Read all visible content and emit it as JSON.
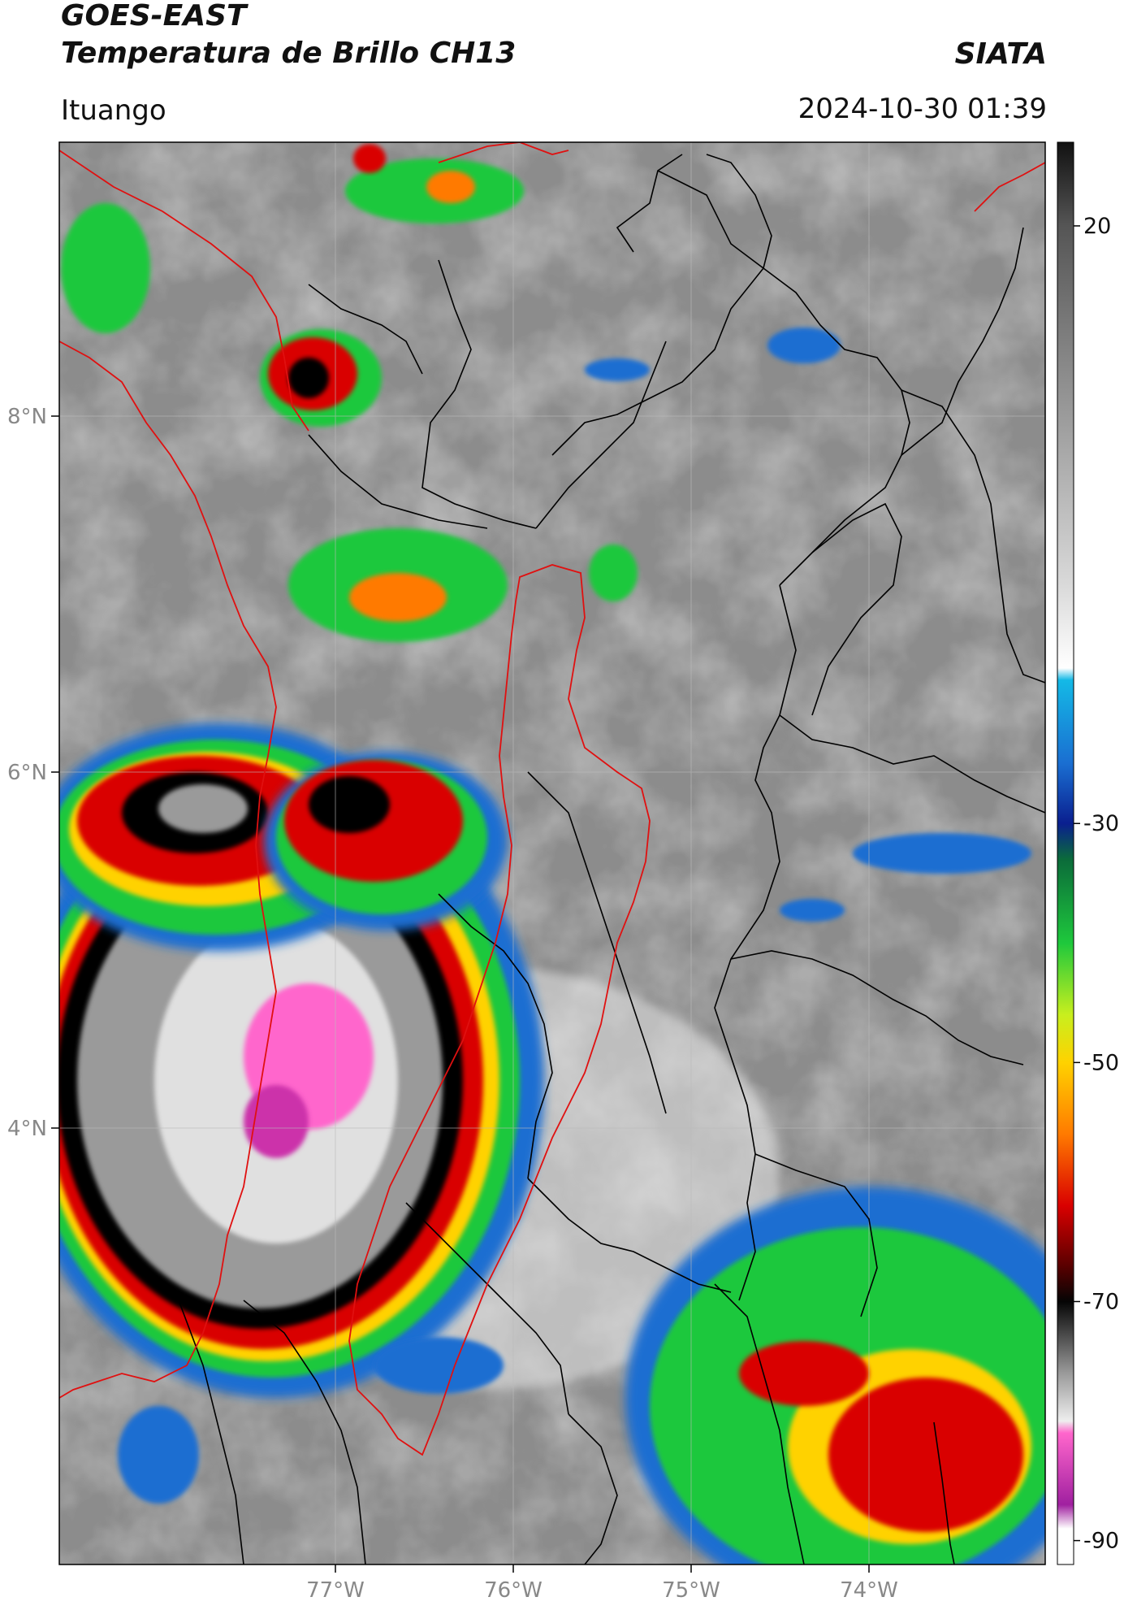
{
  "header": {
    "satellite": "GOES-EAST",
    "product": "Temperatura de Brillo CH13",
    "agency": "SIATA",
    "region": "Ituango",
    "datetime": "2024-10-30 01:39"
  },
  "axes": {
    "lat_ticks": [
      "8°N",
      "6°N",
      "4°N"
    ],
    "lon_ticks": [
      "77°W",
      "76°W",
      "75°W",
      "74°W"
    ]
  },
  "colorbar": {
    "ticks": [
      "20",
      "-30",
      "-50",
      "-70",
      "-90"
    ],
    "range": [
      -92,
      27
    ],
    "stops": [
      {
        "t": 27,
        "c": "#111111"
      },
      {
        "t": 20,
        "c": "#555555"
      },
      {
        "t": -10,
        "c": "#d9d9d9"
      },
      {
        "t": -17,
        "c": "#ffffff"
      },
      {
        "t": -18,
        "c": "#14b9e6"
      },
      {
        "t": -25,
        "c": "#1a6ed1"
      },
      {
        "t": -30,
        "c": "#0a1f8f"
      },
      {
        "t": -33,
        "c": "#0b6b3a"
      },
      {
        "t": -40,
        "c": "#1ec83c"
      },
      {
        "t": -46,
        "c": "#c8ef1e"
      },
      {
        "t": -50,
        "c": "#ffd200"
      },
      {
        "t": -56,
        "c": "#ff7a00"
      },
      {
        "t": -62,
        "c": "#d90000"
      },
      {
        "t": -67,
        "c": "#5a0000"
      },
      {
        "t": -70,
        "c": "#050505"
      },
      {
        "t": -76,
        "c": "#9a9a9a"
      },
      {
        "t": -80,
        "c": "#eeeeee"
      },
      {
        "t": -81,
        "c": "#ff66cc"
      },
      {
        "t": -87,
        "c": "#a020a0"
      },
      {
        "t": -89,
        "c": "#ffffff"
      },
      {
        "t": -92,
        "c": "#ffffff"
      }
    ]
  }
}
